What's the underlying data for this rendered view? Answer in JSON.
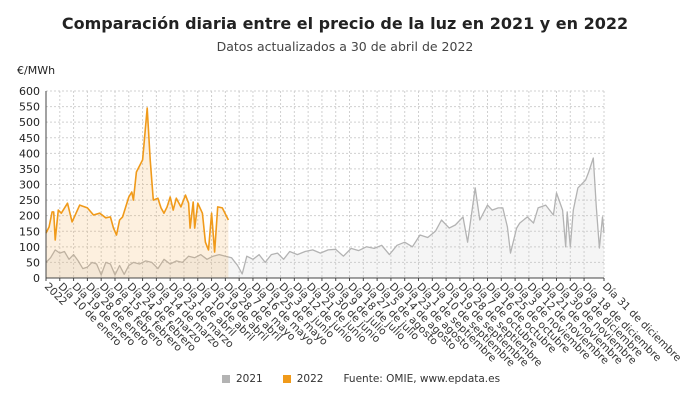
{
  "chart_data": {
    "type": "line",
    "title": "Comparación diaria entre el precio de la luz en 2021 y en 2022",
    "subtitle": "Datos actualizados a 30 de abril de 2022",
    "ylabel": "€/MWh",
    "ylim": [
      0,
      600
    ],
    "yticks": [
      0,
      50,
      100,
      150,
      200,
      250,
      300,
      350,
      400,
      450,
      500,
      550,
      600
    ],
    "grid": true,
    "legend_position": "bottom",
    "source": "Fuente: OMIE, www.epdata.es",
    "xtick_labels": [
      {
        "date": "01-01",
        "label": "2022"
      },
      {
        "date": "01-10",
        "label": "Día 10 de enero"
      },
      {
        "date": "01-19",
        "label": "Día 19 de enero"
      },
      {
        "date": "01-28",
        "label": "Día 28 de enero"
      },
      {
        "date": "02-06",
        "label": "Día 6 de febrero"
      },
      {
        "date": "02-15",
        "label": "Día 15 de febrero"
      },
      {
        "date": "02-24",
        "label": "Día 24 de febrero"
      },
      {
        "date": "03-05",
        "label": "Día 5 de marzo"
      },
      {
        "date": "03-14",
        "label": "Día 14 de marzo"
      },
      {
        "date": "03-23",
        "label": "Día 23 de marzo"
      },
      {
        "date": "04-01",
        "label": "Día 1 de abril"
      },
      {
        "date": "04-10",
        "label": "Día 10 de abril"
      },
      {
        "date": "04-19",
        "label": "Día 19 de abril"
      },
      {
        "date": "04-28",
        "label": "Día 28 de abril"
      },
      {
        "date": "05-07",
        "label": "Día 7 de mayo"
      },
      {
        "date": "05-16",
        "label": "Día 16 de mayo"
      },
      {
        "date": "05-25",
        "label": "Día 25 de mayo"
      },
      {
        "date": "06-03",
        "label": "Día 3 de junio"
      },
      {
        "date": "06-12",
        "label": "Día 12 de junio"
      },
      {
        "date": "06-21",
        "label": "Día 21 de junio"
      },
      {
        "date": "06-30",
        "label": "Día 30 de junio"
      },
      {
        "date": "07-09",
        "label": "Día 9 de julio"
      },
      {
        "date": "07-18",
        "label": "Día 18 de julio"
      },
      {
        "date": "07-27",
        "label": "Día 27 de julio"
      },
      {
        "date": "08-05",
        "label": "Día 5 de agosto"
      },
      {
        "date": "08-14",
        "label": "Día 14 de agosto"
      },
      {
        "date": "08-23",
        "label": "Día 23 de agosto"
      },
      {
        "date": "09-01",
        "label": "Día 1 de septiembre"
      },
      {
        "date": "09-10",
        "label": "Día 10 de septiembre"
      },
      {
        "date": "09-19",
        "label": "Día 19 de septiembre"
      },
      {
        "date": "09-28",
        "label": "Día 28 de septiembre"
      },
      {
        "date": "10-07",
        "label": "Día 7 de octubre"
      },
      {
        "date": "10-16",
        "label": "Día 16 de octubre"
      },
      {
        "date": "10-25",
        "label": "Día 25 de octubre"
      },
      {
        "date": "11-03",
        "label": "Día 3 de noviembre"
      },
      {
        "date": "11-12",
        "label": "Día 12 de noviembre"
      },
      {
        "date": "11-21",
        "label": "Día 21 de noviembre"
      },
      {
        "date": "11-30",
        "label": "Día 30 de noviembre"
      },
      {
        "date": "12-09",
        "label": "Día 9 de diciembre"
      },
      {
        "date": "12-18",
        "label": "Día 18 de diciembre"
      },
      {
        "date": "12-31",
        "label": "Día 31 de diciembre"
      }
    ],
    "series": [
      {
        "name": "2021",
        "color": "#b3b3b3",
        "points": [
          [
            "01-01",
            50
          ],
          [
            "01-04",
            65
          ],
          [
            "01-07",
            90
          ],
          [
            "01-10",
            80
          ],
          [
            "01-13",
            85
          ],
          [
            "01-16",
            60
          ],
          [
            "01-19",
            75
          ],
          [
            "01-22",
            55
          ],
          [
            "01-25",
            30
          ],
          [
            "01-28",
            35
          ],
          [
            "01-31",
            50
          ],
          [
            "02-03",
            45
          ],
          [
            "02-06",
            10
          ],
          [
            "02-09",
            50
          ],
          [
            "02-12",
            45
          ],
          [
            "02-15",
            10
          ],
          [
            "02-18",
            40
          ],
          [
            "02-21",
            12
          ],
          [
            "02-24",
            40
          ],
          [
            "02-27",
            50
          ],
          [
            "03-03",
            45
          ],
          [
            "03-07",
            55
          ],
          [
            "03-11",
            50
          ],
          [
            "03-15",
            30
          ],
          [
            "03-19",
            60
          ],
          [
            "03-23",
            45
          ],
          [
            "03-27",
            55
          ],
          [
            "03-31",
            50
          ],
          [
            "04-04",
            70
          ],
          [
            "04-08",
            65
          ],
          [
            "04-12",
            75
          ],
          [
            "04-16",
            60
          ],
          [
            "04-20",
            70
          ],
          [
            "04-24",
            75
          ],
          [
            "04-28",
            70
          ],
          [
            "05-02",
            65
          ],
          [
            "05-06",
            40
          ],
          [
            "05-09",
            13
          ],
          [
            "05-12",
            70
          ],
          [
            "05-16",
            60
          ],
          [
            "05-20",
            75
          ],
          [
            "05-24",
            50
          ],
          [
            "05-28",
            75
          ],
          [
            "06-01",
            80
          ],
          [
            "06-05",
            60
          ],
          [
            "06-09",
            85
          ],
          [
            "06-14",
            75
          ],
          [
            "06-19",
            85
          ],
          [
            "06-24",
            90
          ],
          [
            "06-29",
            80
          ],
          [
            "07-04",
            90
          ],
          [
            "07-09",
            92
          ],
          [
            "07-14",
            70
          ],
          [
            "07-19",
            95
          ],
          [
            "07-24",
            88
          ],
          [
            "07-29",
            100
          ],
          [
            "08-03",
            95
          ],
          [
            "08-08",
            105
          ],
          [
            "08-13",
            75
          ],
          [
            "08-18",
            105
          ],
          [
            "08-23",
            115
          ],
          [
            "08-28",
            100
          ],
          [
            "09-02",
            138
          ],
          [
            "09-07",
            130
          ],
          [
            "09-12",
            150
          ],
          [
            "09-16",
            186
          ],
          [
            "09-21",
            160
          ],
          [
            "09-25",
            170
          ],
          [
            "09-30",
            196
          ],
          [
            "10-03",
            115
          ],
          [
            "10-08",
            289
          ],
          [
            "10-11",
            186
          ],
          [
            "10-16",
            234
          ],
          [
            "10-19",
            218
          ],
          [
            "10-23",
            225
          ],
          [
            "10-26",
            225
          ],
          [
            "10-29",
            164
          ],
          [
            "10-31",
            80
          ],
          [
            "11-04",
            160
          ],
          [
            "11-06",
            176
          ],
          [
            "11-11",
            196
          ],
          [
            "11-15",
            176
          ],
          [
            "11-18",
            225
          ],
          [
            "11-23",
            234
          ],
          [
            "11-28",
            202
          ],
          [
            "11-30",
            273
          ],
          [
            "12-04",
            218
          ],
          [
            "12-06",
            100
          ],
          [
            "12-07",
            212
          ],
          [
            "12-09",
            100
          ],
          [
            "12-11",
            218
          ],
          [
            "12-14",
            289
          ],
          [
            "12-19",
            314
          ],
          [
            "12-21",
            340
          ],
          [
            "12-24",
            385
          ],
          [
            "12-26",
            228
          ],
          [
            "12-28",
            96
          ],
          [
            "12-30",
            196
          ],
          [
            "12-31",
            144
          ]
        ]
      },
      {
        "name": "2022",
        "color": "#f09a1a",
        "points": [
          [
            "01-01",
            144
          ],
          [
            "01-03",
            164
          ],
          [
            "01-05",
            212
          ],
          [
            "01-06",
            212
          ],
          [
            "01-07",
            122
          ],
          [
            "01-09",
            218
          ],
          [
            "01-11",
            208
          ],
          [
            "01-15",
            240
          ],
          [
            "01-18",
            180
          ],
          [
            "01-23",
            234
          ],
          [
            "01-28",
            225
          ],
          [
            "02-01",
            202
          ],
          [
            "02-05",
            208
          ],
          [
            "02-09",
            193
          ],
          [
            "02-12",
            196
          ],
          [
            "02-14",
            160
          ],
          [
            "02-16",
            138
          ],
          [
            "02-18",
            186
          ],
          [
            "02-20",
            196
          ],
          [
            "02-24",
            260
          ],
          [
            "02-26",
            276
          ],
          [
            "02-27",
            250
          ],
          [
            "03-01",
            340
          ],
          [
            "03-05",
            379
          ],
          [
            "03-08",
            545
          ],
          [
            "03-10",
            379
          ],
          [
            "03-12",
            250
          ],
          [
            "03-15",
            256
          ],
          [
            "03-17",
            225
          ],
          [
            "03-19",
            208
          ],
          [
            "03-21",
            228
          ],
          [
            "03-23",
            260
          ],
          [
            "03-25",
            218
          ],
          [
            "03-27",
            256
          ],
          [
            "03-30",
            228
          ],
          [
            "04-02",
            266
          ],
          [
            "04-04",
            240
          ],
          [
            "04-05",
            160
          ],
          [
            "04-07",
            244
          ],
          [
            "04-08",
            160
          ],
          [
            "04-10",
            240
          ],
          [
            "04-13",
            208
          ],
          [
            "04-15",
            115
          ],
          [
            "04-17",
            90
          ],
          [
            "04-19",
            208
          ],
          [
            "04-21",
            83
          ],
          [
            "04-23",
            228
          ],
          [
            "04-26",
            225
          ],
          [
            "04-30",
            186
          ]
        ]
      }
    ]
  }
}
